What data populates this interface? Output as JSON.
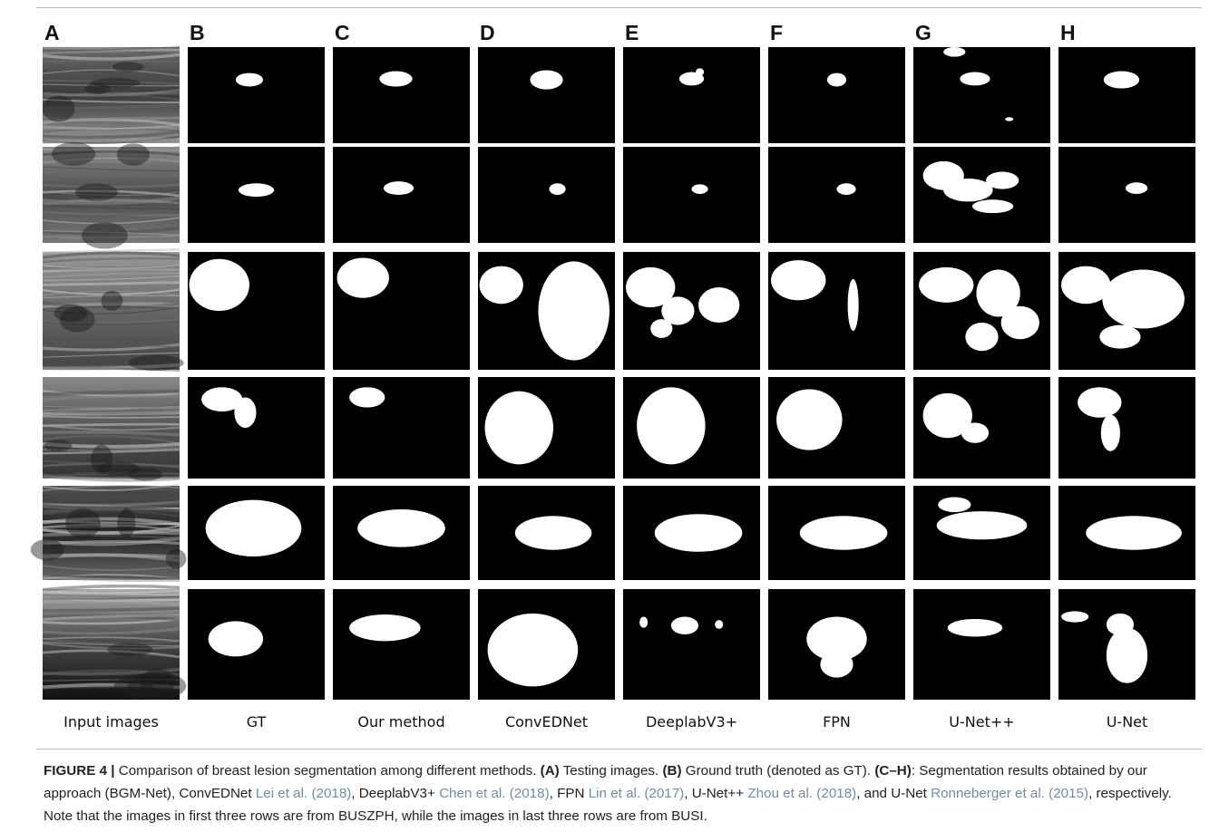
{
  "figure": {
    "columns": [
      {
        "letter": "A",
        "label": "Input images"
      },
      {
        "letter": "B",
        "label": "GT"
      },
      {
        "letter": "C",
        "label": "Our method"
      },
      {
        "letter": "D",
        "label": "ConvEDNet"
      },
      {
        "letter": "E",
        "label": "DeeplabV3+"
      },
      {
        "letter": "F",
        "label": "FPN"
      },
      {
        "letter": "G",
        "label": "U-Net++"
      },
      {
        "letter": "H",
        "label": "U-Net"
      }
    ],
    "caption": {
      "parts": [
        "FIGURE 4 |",
        "Comparison of breast lesion segmentation among different methods.",
        "(A)",
        "Testing images.",
        "(B)",
        "Ground truth (denoted as GT).",
        "(C–H)",
        ": Segmentation results obtained by our approach (BGM-Net), ConvEDNet",
        "Lei et al. (2018)",
        ", DeeplabV3+",
        "Chen et al. (2018)",
        ", FPN",
        "Lin et al. (2017)",
        ", U-Net++",
        "Zhou et al. (2018)",
        ", and U-Net",
        "Ronneberger et al. (2015)",
        ", respectively. Note that the images in first three rows are from BUSZPH, while the images in last three rows are from BUSI."
      ]
    }
  }
}
